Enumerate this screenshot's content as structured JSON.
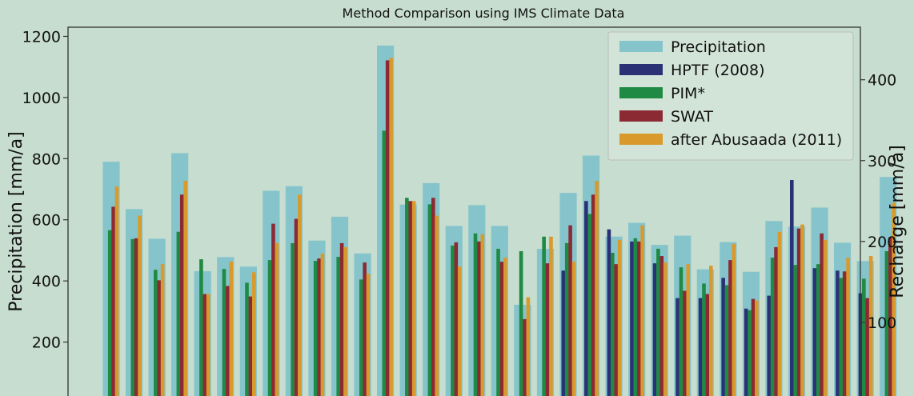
{
  "chart_data": {
    "type": "bar",
    "title": "Method Comparison using IMS Climate Data",
    "ylabel": "Precipitation [mm/a]",
    "y2label": "Recharge [mm/a]",
    "ylim": [
      0,
      1230
    ],
    "y2lim": [
      0,
      465
    ],
    "yticks": [
      "200",
      "400",
      "600",
      "800",
      "1000",
      "1200"
    ],
    "y2ticks": [
      "100",
      "200",
      "300",
      "400"
    ],
    "legend_position": "top-right",
    "colors": {
      "background": "#c7ddcf",
      "precipitation": "#86c4cc",
      "hptf": "#2a3275",
      "pim": "#1f8a43",
      "swat": "#8c2a34",
      "abusaada": "#d99a2b"
    },
    "series": [
      {
        "name": "Precipitation",
        "axis": "left",
        "values": [
          790,
          635,
          538,
          818,
          432,
          478,
          447,
          695,
          710,
          532,
          610,
          490,
          1170,
          650,
          720,
          580,
          648,
          580,
          322,
          505,
          688,
          810,
          545,
          590,
          518,
          548,
          438,
          527,
          430,
          596,
          578,
          640,
          525,
          465,
          740
        ]
      },
      {
        "name": "HPTF (2008)",
        "axis": "right",
        "values": [
          null,
          null,
          null,
          null,
          null,
          null,
          null,
          null,
          null,
          null,
          null,
          null,
          null,
          null,
          null,
          null,
          null,
          null,
          null,
          null,
          164,
          250,
          215,
          200,
          173,
          130,
          130,
          155,
          117,
          133,
          276,
          167,
          164,
          136,
          null
        ]
      },
      {
        "name": "PIM*",
        "axis": "right",
        "values": [
          214,
          203,
          165,
          212,
          178,
          166,
          149,
          177,
          198,
          176,
          181,
          153,
          337,
          254,
          246,
          195,
          210,
          191,
          188,
          206,
          198,
          234,
          186,
          204,
          191,
          168,
          148,
          146,
          115,
          180,
          171,
          172,
          155,
          154,
          188
        ]
      },
      {
        "name": "SWAT",
        "axis": "right",
        "values": [
          243,
          204,
          152,
          258,
          135,
          145,
          132,
          222,
          228,
          179,
          198,
          174,
          424,
          250,
          254,
          199,
          200,
          175,
          104,
          173,
          220,
          258,
          172,
          200,
          182,
          139,
          135,
          177,
          129,
          193,
          216,
          210,
          163,
          130,
          205
        ]
      },
      {
        "name": "after Abusaada (2011)",
        "axis": "right",
        "values": [
          268,
          232,
          172,
          275,
          135,
          175,
          162,
          198,
          258,
          185,
          193,
          160,
          427,
          250,
          232,
          169,
          209,
          180,
          131,
          206,
          175,
          275,
          202,
          220,
          174,
          172,
          170,
          197,
          127,
          212,
          221,
          202,
          180,
          182,
          248
        ]
      }
    ]
  }
}
